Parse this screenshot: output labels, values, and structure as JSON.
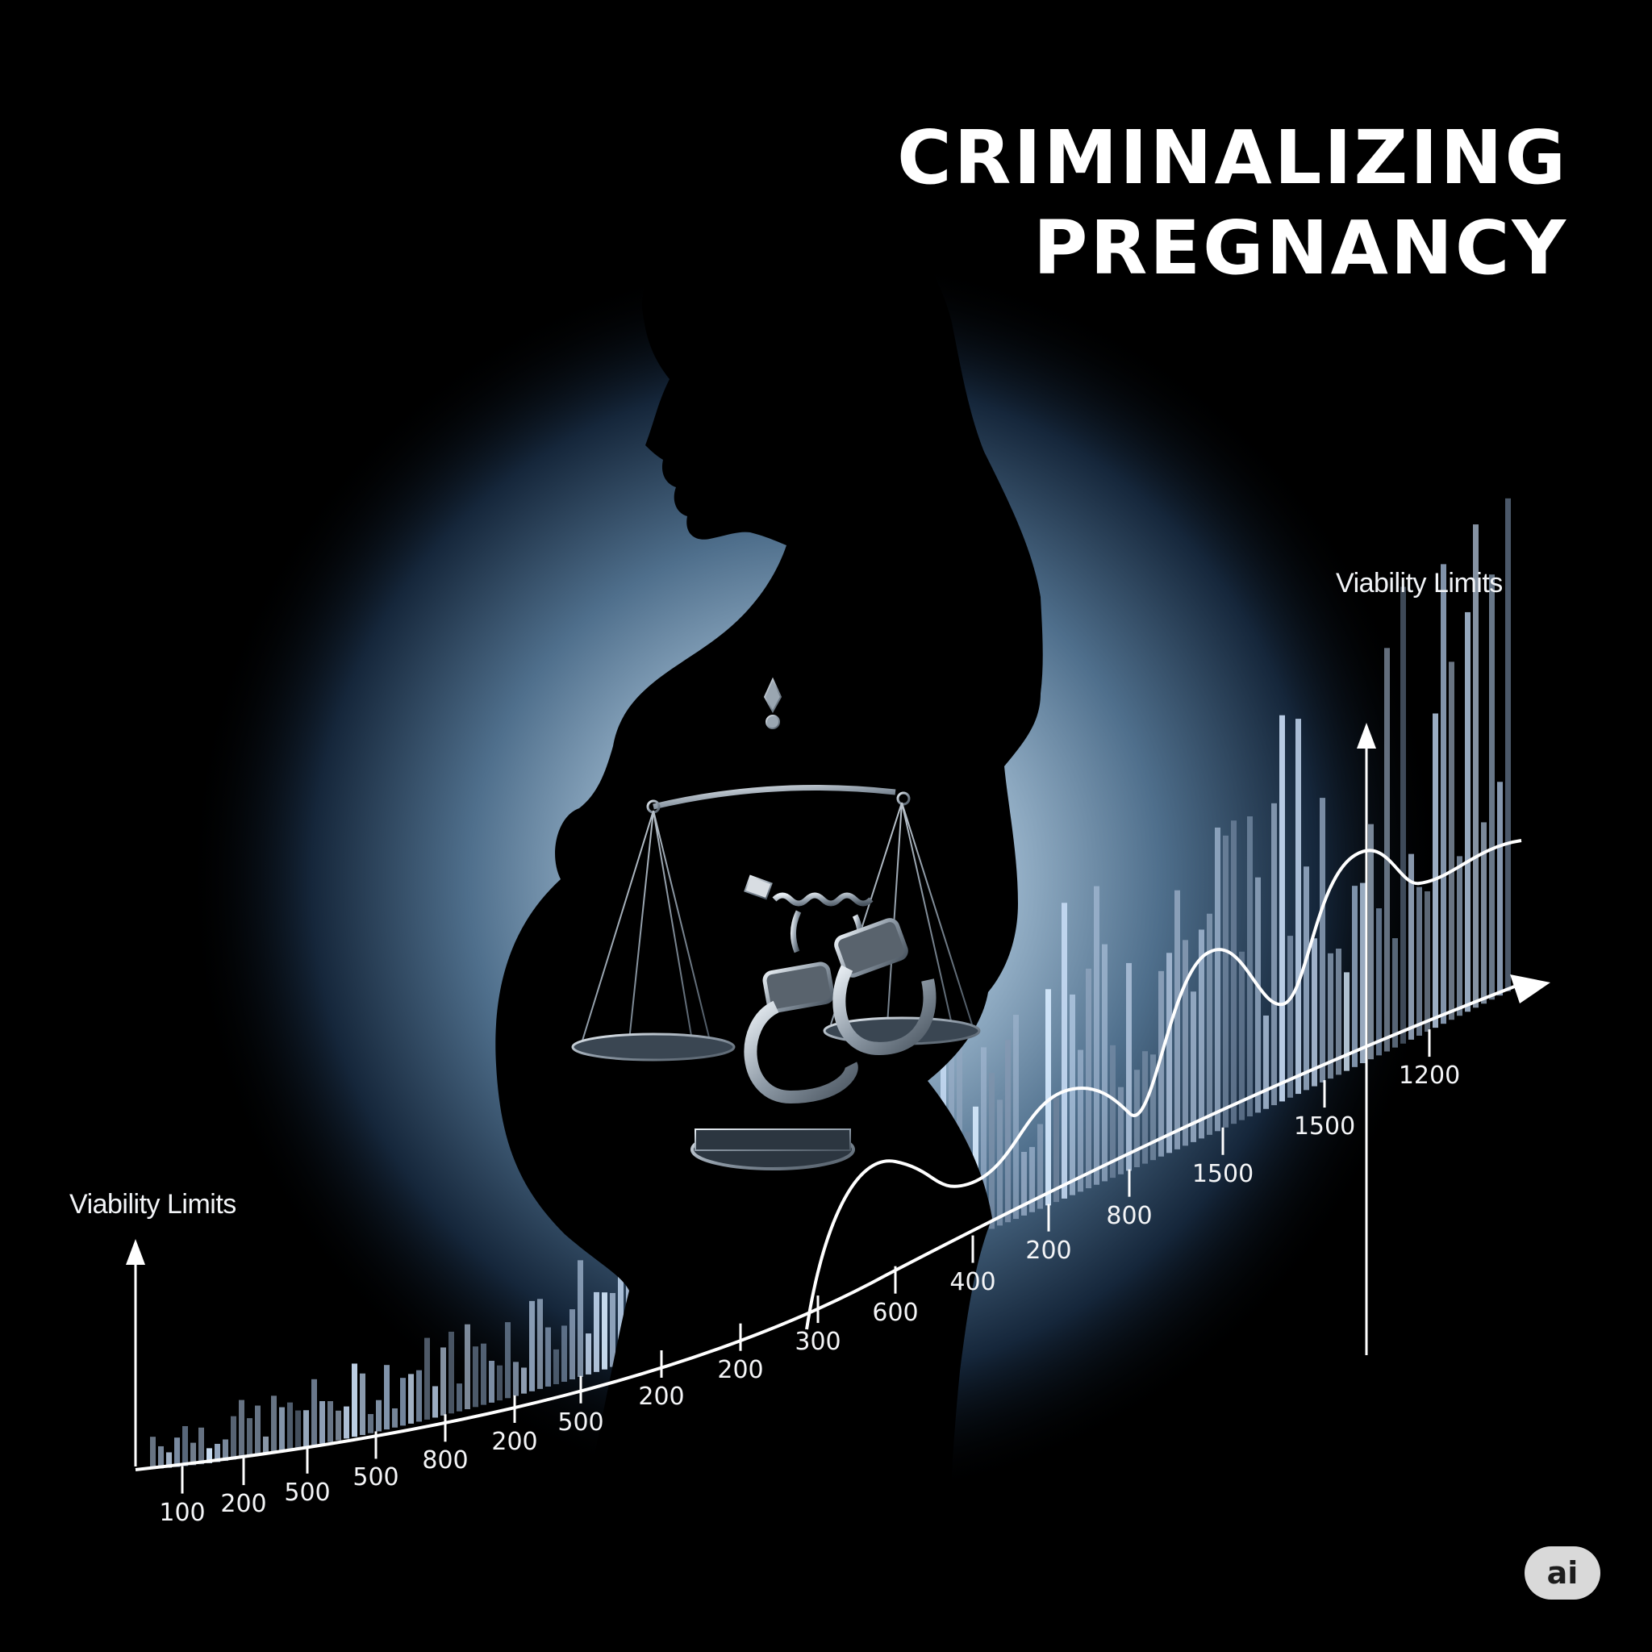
{
  "title": {
    "line1": "CRIMINALIZING",
    "line2": "PREGNANCY"
  },
  "axis_captions": {
    "left": "Viability Limits",
    "right": "Viability Limits"
  },
  "tick_labels": [
    "100",
    "200",
    "500",
    "500",
    "800",
    "200",
    "500",
    "200",
    "200",
    "300",
    "600",
    "400",
    "200",
    "800",
    "1500",
    "1500",
    "1200"
  ],
  "badge": "ai",
  "colors": {
    "background": "#000000",
    "glow": "#a9c3d8",
    "bars": "#9fb3c6",
    "line": "#ffffff"
  },
  "icons": [
    "woman-silhouette",
    "scales-of-justice-icon",
    "handcuffs-icon",
    "arrow-icon"
  ]
}
